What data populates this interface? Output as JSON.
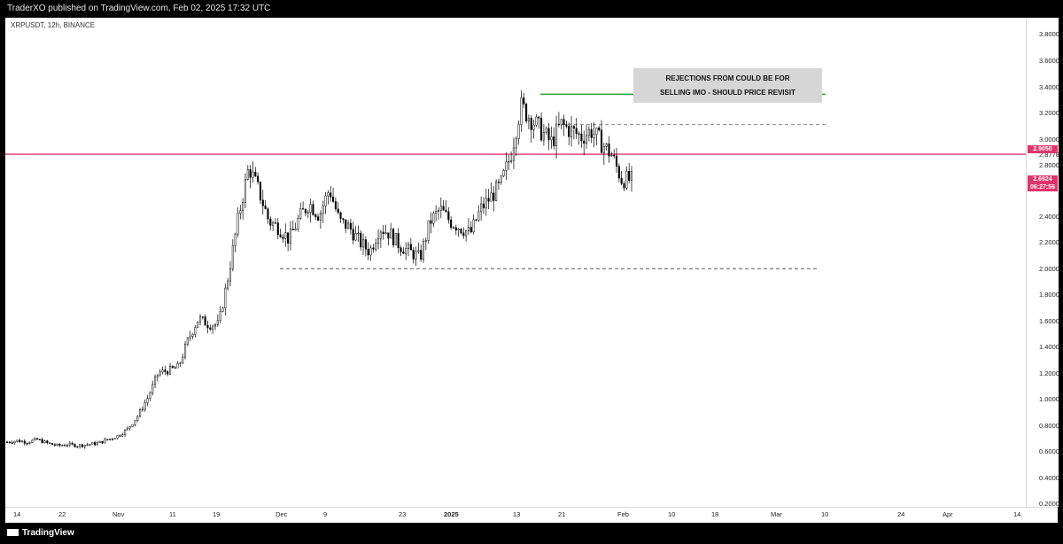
{
  "header": {
    "publish_line": "TraderXO published on TradingView.com, Feb 02, 2025 17:32 UTC"
  },
  "chart": {
    "symbol_line": "XRPUSDT, 12h, BINANCE",
    "note_line1": "REJECTIONS FROM COULD BE FOR",
    "note_line2": "SELLING IMO - SHOULD PRICE REVISIT",
    "colors": {
      "red_level": "#e0346c",
      "green_level": "#2e9f3a",
      "candle": "#000000",
      "note_box": "#d6d6d6"
    }
  },
  "yaxis": {
    "ticks": [
      "3.8000",
      "3.6000",
      "3.4000",
      "3.2000",
      "3.0000",
      "2.8778",
      "2.8000",
      "2.4000",
      "2.2000",
      "2.0000",
      "1.8000",
      "1.6000",
      "1.4000",
      "1.2000",
      "1.0000",
      "0.8000",
      "0.6000",
      "0.4000",
      "0.2000"
    ],
    "red_level_tag": "2.9050",
    "price_tag": "2.6924",
    "countdown_tag": "06:27:56"
  },
  "xaxis": {
    "labels": [
      "14",
      "22",
      "Nov",
      "11",
      "19",
      "Dec",
      "9",
      "23",
      "2025",
      "13",
      "21",
      "Feb",
      "10",
      "18",
      "Mar",
      "10",
      "24",
      "Apr",
      "14"
    ]
  },
  "footer": {
    "brand": "TradingView"
  },
  "chart_data": {
    "type": "candlestick",
    "symbol": "XRPUSDT",
    "interval": "12h",
    "exchange": "BINANCE",
    "ylim": [
      0.2,
      3.9
    ],
    "levels": [
      {
        "price": 2.905,
        "style": "solid",
        "color": "#e0346c"
      },
      {
        "price": 3.4,
        "style": "solid",
        "color": "#2e9f3a"
      },
      {
        "price": 3.15,
        "style": "dashed",
        "color": "#888888"
      },
      {
        "price": 1.96,
        "style": "dashed",
        "color": "#555555"
      }
    ],
    "price_path": [
      0.53,
      0.54,
      0.53,
      0.55,
      0.52,
      0.5,
      0.51,
      0.5,
      0.51,
      0.52,
      0.55,
      0.58,
      0.64,
      0.75,
      0.9,
      1.1,
      1.12,
      1.15,
      1.38,
      1.55,
      1.5,
      1.5,
      1.92,
      2.4,
      2.8,
      2.6,
      2.35,
      2.3,
      2.2,
      2.38,
      2.5,
      2.4,
      2.62,
      2.35,
      2.3,
      2.18,
      2.1,
      2.3,
      2.25,
      2.15,
      2.1,
      2.05,
      2.35,
      2.45,
      2.35,
      2.3,
      2.25,
      2.45,
      2.55,
      2.65,
      2.9,
      3.3,
      3.2,
      3.1,
      3.0,
      3.15,
      3.1,
      3.05,
      3.1,
      3.0,
      2.9,
      2.7,
      2.69
    ]
  }
}
